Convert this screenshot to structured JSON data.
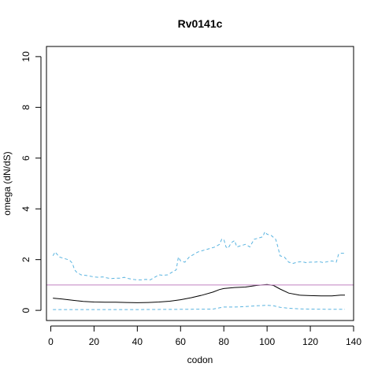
{
  "chart_data": {
    "type": "line",
    "title": "Rv0141c",
    "xlabel": "codon",
    "ylabel": "omega (dN/dS)",
    "xlim": [
      -2,
      140
    ],
    "ylim": [
      -0.4,
      10.4
    ],
    "x_ticks": [
      0,
      20,
      40,
      60,
      80,
      100,
      120,
      140
    ],
    "y_ticks": [
      0,
      2,
      4,
      6,
      8,
      10
    ],
    "grid": false,
    "legend": "none",
    "reference_line": {
      "y": 1,
      "color": "#c080c0"
    },
    "series": [
      {
        "style": "solid",
        "color": "#000000",
        "points": [
          [
            1,
            0.48
          ],
          [
            5,
            0.45
          ],
          [
            10,
            0.4
          ],
          [
            15,
            0.35
          ],
          [
            20,
            0.33
          ],
          [
            25,
            0.32
          ],
          [
            30,
            0.32
          ],
          [
            35,
            0.31
          ],
          [
            40,
            0.3
          ],
          [
            45,
            0.31
          ],
          [
            50,
            0.33
          ],
          [
            55,
            0.36
          ],
          [
            60,
            0.42
          ],
          [
            65,
            0.5
          ],
          [
            70,
            0.6
          ],
          [
            75,
            0.72
          ],
          [
            78,
            0.82
          ],
          [
            80,
            0.86
          ],
          [
            85,
            0.9
          ],
          [
            90,
            0.92
          ],
          [
            95,
            0.98
          ],
          [
            100,
            1.02
          ],
          [
            103,
            0.98
          ],
          [
            106,
            0.84
          ],
          [
            110,
            0.68
          ],
          [
            115,
            0.6
          ],
          [
            120,
            0.58
          ],
          [
            125,
            0.57
          ],
          [
            130,
            0.57
          ],
          [
            134,
            0.6
          ],
          [
            136,
            0.6
          ]
        ]
      },
      {
        "style": "dashed",
        "color": "#5ab4e0",
        "points": [
          [
            1,
            2.15
          ],
          [
            2,
            2.3
          ],
          [
            3,
            2.2
          ],
          [
            4,
            2.1
          ],
          [
            6,
            2.05
          ],
          [
            8,
            2.0
          ],
          [
            9,
            1.95
          ],
          [
            10,
            1.85
          ],
          [
            11,
            1.6
          ],
          [
            12,
            1.5
          ],
          [
            14,
            1.4
          ],
          [
            16,
            1.38
          ],
          [
            18,
            1.35
          ],
          [
            20,
            1.32
          ],
          [
            22,
            1.3
          ],
          [
            24,
            1.32
          ],
          [
            26,
            1.28
          ],
          [
            28,
            1.25
          ],
          [
            30,
            1.27
          ],
          [
            32,
            1.27
          ],
          [
            34,
            1.3
          ],
          [
            36,
            1.25
          ],
          [
            38,
            1.22
          ],
          [
            40,
            1.2
          ],
          [
            42,
            1.2
          ],
          [
            44,
            1.22
          ],
          [
            46,
            1.2
          ],
          [
            48,
            1.3
          ],
          [
            50,
            1.4
          ],
          [
            52,
            1.38
          ],
          [
            54,
            1.4
          ],
          [
            56,
            1.5
          ],
          [
            58,
            1.6
          ],
          [
            59,
            2.1
          ],
          [
            60,
            1.95
          ],
          [
            62,
            1.9
          ],
          [
            64,
            2.1
          ],
          [
            66,
            2.2
          ],
          [
            68,
            2.3
          ],
          [
            70,
            2.35
          ],
          [
            72,
            2.4
          ],
          [
            74,
            2.45
          ],
          [
            76,
            2.5
          ],
          [
            78,
            2.6
          ],
          [
            79,
            2.8
          ],
          [
            80,
            2.8
          ],
          [
            81,
            2.5
          ],
          [
            82,
            2.45
          ],
          [
            83,
            2.6
          ],
          [
            84,
            2.7
          ],
          [
            85,
            2.75
          ],
          [
            86,
            2.5
          ],
          [
            88,
            2.55
          ],
          [
            90,
            2.6
          ],
          [
            92,
            2.5
          ],
          [
            94,
            2.8
          ],
          [
            96,
            2.85
          ],
          [
            98,
            2.9
          ],
          [
            99,
            3.1
          ],
          [
            100,
            3.0
          ],
          [
            102,
            2.95
          ],
          [
            104,
            2.8
          ],
          [
            105,
            2.5
          ],
          [
            106,
            2.15
          ],
          [
            108,
            2.1
          ],
          [
            110,
            1.9
          ],
          [
            112,
            1.85
          ],
          [
            114,
            1.9
          ],
          [
            116,
            1.92
          ],
          [
            118,
            1.88
          ],
          [
            120,
            1.9
          ],
          [
            122,
            1.9
          ],
          [
            124,
            1.92
          ],
          [
            126,
            1.88
          ],
          [
            128,
            1.92
          ],
          [
            130,
            1.95
          ],
          [
            132,
            1.9
          ],
          [
            133,
            2.2
          ],
          [
            134,
            2.25
          ],
          [
            136,
            2.25
          ]
        ]
      },
      {
        "style": "dashed",
        "color": "#5ab4e0",
        "points": [
          [
            1,
            0.03
          ],
          [
            20,
            0.03
          ],
          [
            40,
            0.03
          ],
          [
            60,
            0.04
          ],
          [
            75,
            0.05
          ],
          [
            78,
            0.1
          ],
          [
            80,
            0.13
          ],
          [
            85,
            0.13
          ],
          [
            90,
            0.15
          ],
          [
            95,
            0.18
          ],
          [
            100,
            0.2
          ],
          [
            103,
            0.18
          ],
          [
            106,
            0.12
          ],
          [
            110,
            0.08
          ],
          [
            115,
            0.06
          ],
          [
            120,
            0.05
          ],
          [
            130,
            0.04
          ],
          [
            136,
            0.04
          ]
        ]
      }
    ]
  }
}
